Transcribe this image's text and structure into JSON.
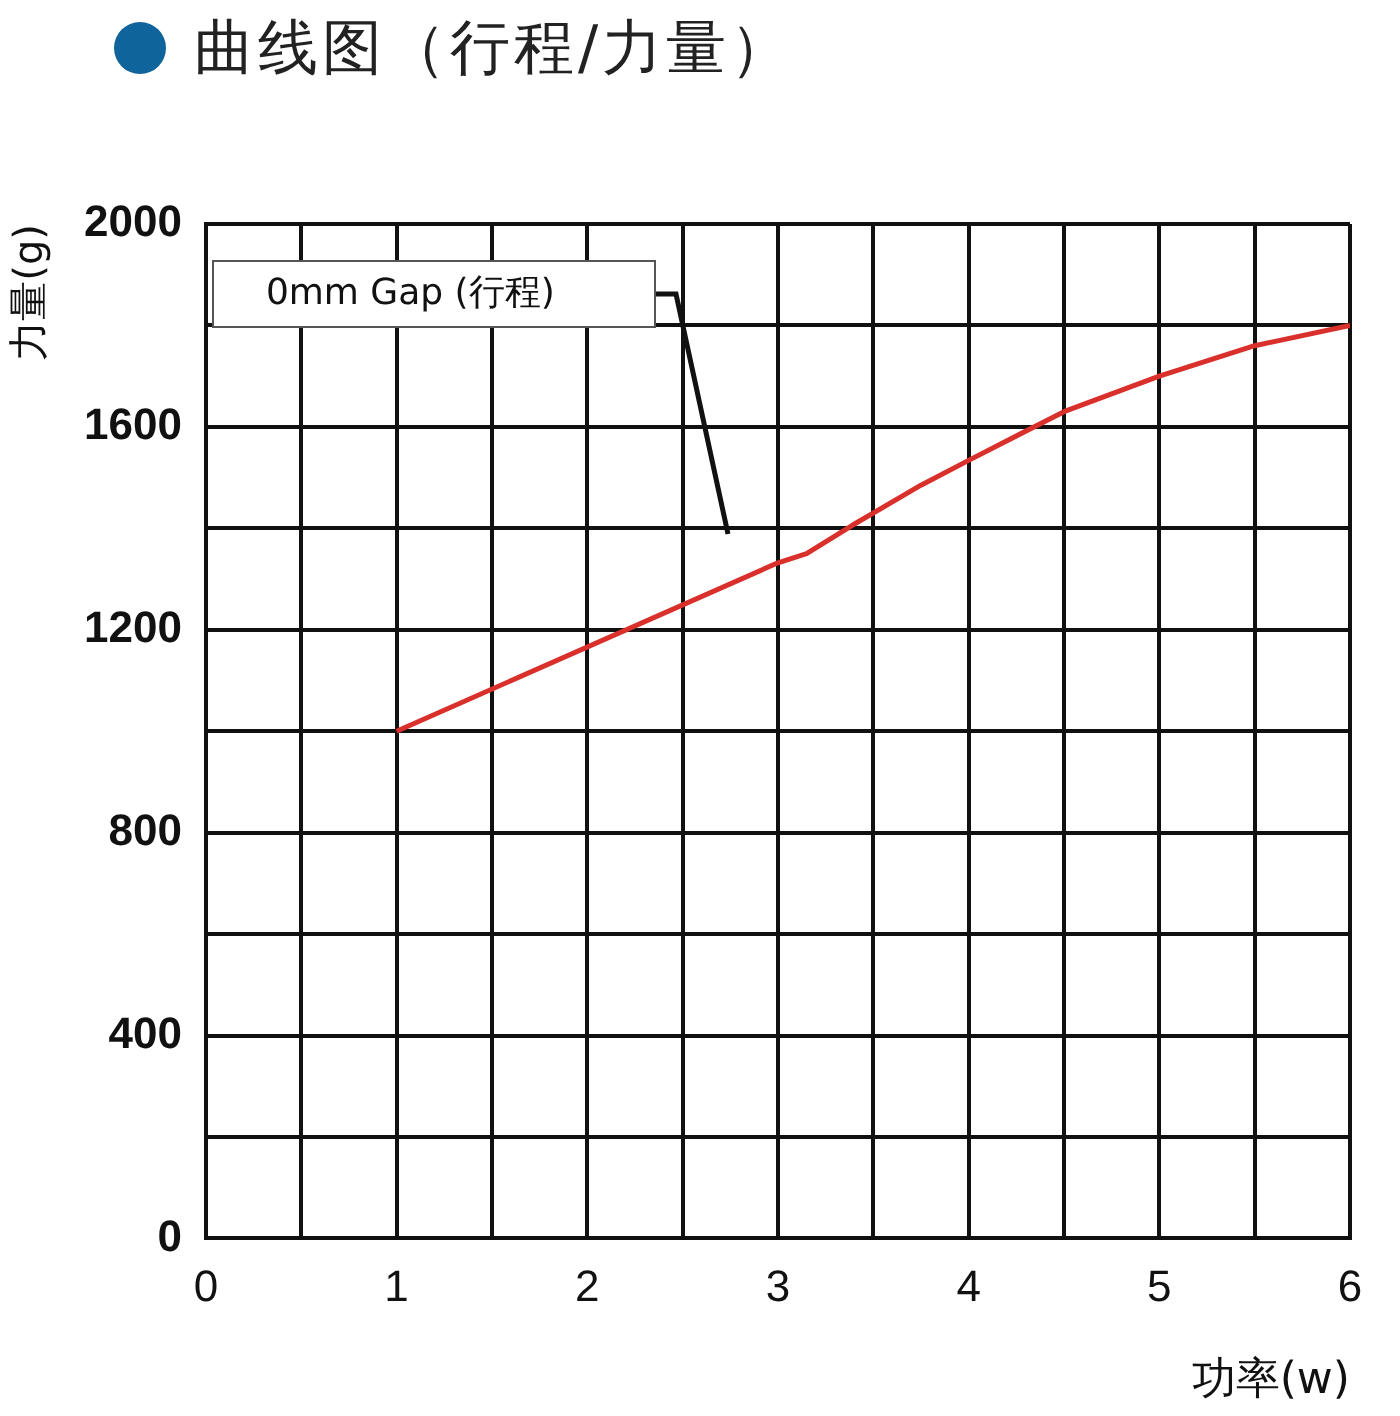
{
  "chart_data": {
    "type": "line",
    "title": "曲线图（行程/力量）",
    "xlabel": "功率(w)",
    "ylabel": "力量(g)",
    "x": [
      1,
      3,
      3.15,
      3.39,
      3.75,
      4,
      4.5,
      5,
      5.5,
      6
    ],
    "series": [
      {
        "color": "#d9302c",
        "values": [
          1000,
          1332,
          1350,
          1406,
          1485,
          1534,
          1630,
          1700,
          1760,
          1800
        ]
      }
    ],
    "xlim": [
      0,
      6
    ],
    "xticks": [
      0,
      {
        "value": 0.5,
        "label": null
      },
      1,
      {
        "value": 1.5,
        "label": null
      },
      2,
      {
        "value": 2.5,
        "label": null
      },
      3,
      {
        "value": 3.5,
        "label": null
      },
      4,
      {
        "value": 4.5,
        "label": null
      },
      5,
      {
        "value": 5.5,
        "label": null
      },
      6
    ],
    "ylim": [
      0,
      2000
    ],
    "yticks": [
      0,
      {
        "value": 200,
        "label": null
      },
      400,
      {
        "value": 600,
        "label": null
      },
      800,
      {
        "value": 1000,
        "label": null
      },
      1200,
      {
        "value": 1400,
        "label": null
      },
      1600,
      {
        "value": 1800,
        "label": null
      },
      2000
    ],
    "grid": true,
    "legend": false,
    "marker": "none",
    "line_style": "solid",
    "annotations": [
      "0mm Gap (行程)"
    ]
  }
}
